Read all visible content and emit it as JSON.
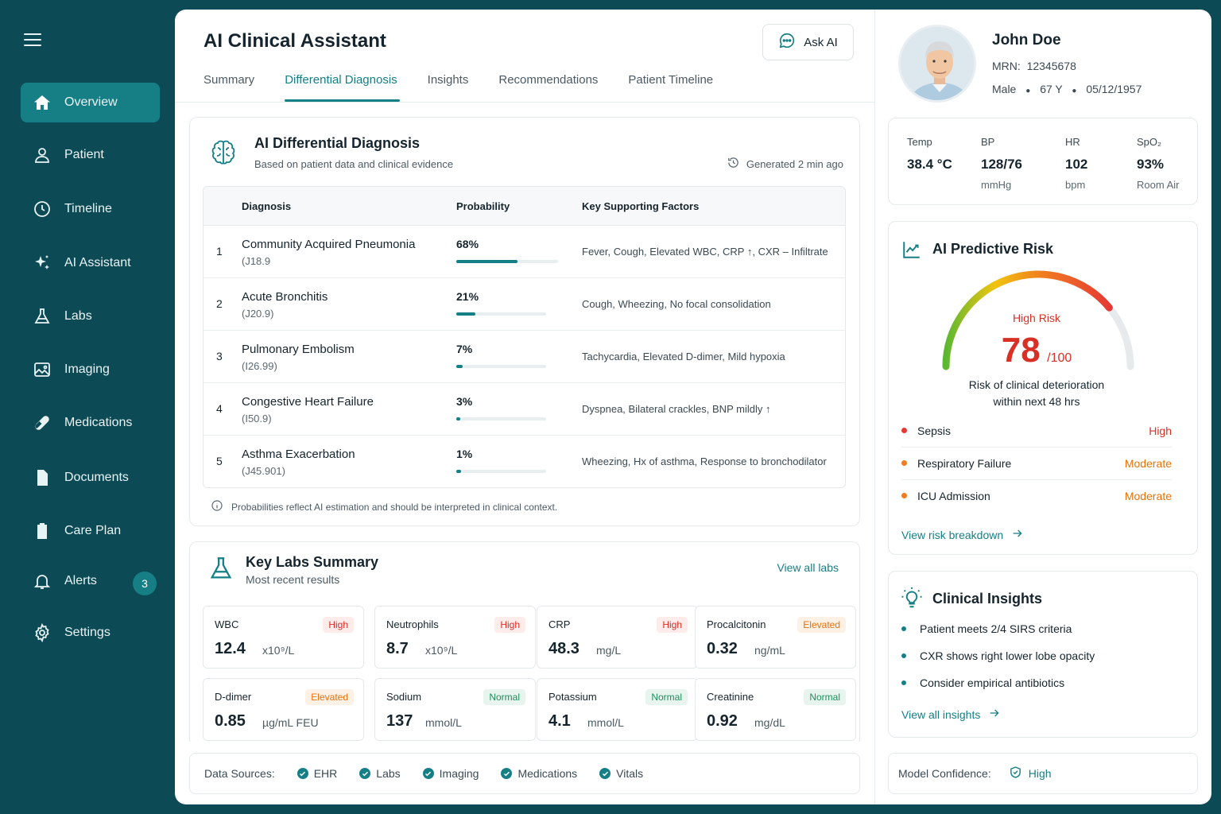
{
  "sidebar": {
    "items": [
      {
        "label": "Overview",
        "icon": "home-icon"
      },
      {
        "label": "Patient",
        "icon": "user-icon"
      },
      {
        "label": "Timeline",
        "icon": "clock-icon"
      },
      {
        "label": "AI Assistant",
        "icon": "sparkle-icon"
      },
      {
        "label": "Labs",
        "icon": "flask-icon"
      },
      {
        "label": "Imaging",
        "icon": "image-icon"
      },
      {
        "label": "Medications",
        "icon": "pill-icon"
      },
      {
        "label": "Documents",
        "icon": "document-icon"
      },
      {
        "label": "Care Plan",
        "icon": "clipboard-icon"
      },
      {
        "label": "Alerts",
        "icon": "bell-icon",
        "badge": "3"
      },
      {
        "label": "Settings",
        "icon": "gear-icon"
      }
    ]
  },
  "header": {
    "title": "AI Clinical Assistant",
    "ask_label": "Ask AI",
    "tabs": [
      "Summary",
      "Differential Diagnosis",
      "Insights",
      "Recommendations",
      "Patient Timeline"
    ],
    "active_tab": "Differential Diagnosis"
  },
  "diagnosis": {
    "title": "AI Differential Diagnosis",
    "subtitle": "Based on patient data and clinical evidence",
    "generated": "Generated 2 min ago",
    "columns": [
      "Diagnosis",
      "Probability",
      "Key Supporting Factors"
    ],
    "rows": [
      {
        "num": "1",
        "name": "Community Acquired Pneumonia",
        "code": "(J18.9",
        "prob": "68%",
        "prob_value": 0.68,
        "factors": "Fever, Cough, Elevated WBC, CRP ↑, CXR – Infiltrate"
      },
      {
        "num": "2",
        "name": "Acute Bronchitis",
        "code": "(J20.9)",
        "prob": "21%",
        "prob_value": 0.21,
        "factors": "Cough, Wheezing, No focal consolidation"
      },
      {
        "num": "3",
        "name": "Pulmonary Embolism",
        "code": "(I26.99)",
        "prob": "7%",
        "prob_value": 0.07,
        "factors": "Tachycardia, Elevated D-dimer, Mild hypoxia"
      },
      {
        "num": "4",
        "name": "Congestive Heart Failure",
        "code": "(I50.9)",
        "prob": "3%",
        "prob_value": 0.03,
        "factors": "Dyspnea, Bilateral crackles, BNP mildly ↑"
      },
      {
        "num": "5",
        "name": "Asthma Exacerbation",
        "code": "(J45.901)",
        "prob": "1%",
        "prob_value": 0.01,
        "factors": "Wheezing, Hx of asthma, Response to bronchodilator"
      }
    ],
    "note": "Probabilities reflect AI estimation and should be interpreted in clinical context."
  },
  "labs": {
    "title": "Key Labs Summary",
    "subtitle": "Most recent results",
    "view_all": "View all labs",
    "items": [
      {
        "name": "WBC",
        "value": "12.4",
        "unit": "x10⁹/L",
        "flag": "High",
        "flag_type": "high"
      },
      {
        "name": "Neutrophils",
        "value": "8.7",
        "unit": "x10⁹/L",
        "flag": "High",
        "flag_type": "high"
      },
      {
        "name": "CRP",
        "value": "48.3",
        "unit": "mg/L",
        "flag": "High",
        "flag_type": "high"
      },
      {
        "name": "Procalcitonin",
        "value": "0.32",
        "unit": "ng/mL",
        "flag": "Elevated",
        "flag_type": "elev"
      },
      {
        "name": "D-dimer",
        "value": "0.85",
        "unit": "µg/mL FEU",
        "flag": "Elevated",
        "flag_type": "elev"
      },
      {
        "name": "Sodium",
        "value": "137",
        "unit": "mmol/L",
        "flag": "Normal",
        "flag_type": "norm"
      },
      {
        "name": "Potassium",
        "value": "4.1",
        "unit": "mmol/L",
        "flag": "Normal",
        "flag_type": "norm"
      },
      {
        "name": "Creatinine",
        "value": "0.92",
        "unit": "mg/dL",
        "flag": "Normal",
        "flag_type": "norm"
      }
    ]
  },
  "sources": {
    "label": "Data Sources:",
    "items": [
      "EHR",
      "Labs",
      "Imaging",
      "Medications",
      "Vitals"
    ]
  },
  "confidence": {
    "label": "Model Confidence:",
    "value": "High"
  },
  "patient": {
    "name": "John Doe",
    "mrn_label": "MRN:",
    "mrn": "12345678",
    "sex": "Male",
    "age": "67 Y",
    "dob": "05/12/1957"
  },
  "vitals": [
    {
      "label": "Temp",
      "value": "38.4 °C",
      "unit": ""
    },
    {
      "label": "BP",
      "value": "128/76",
      "unit": "mmHg"
    },
    {
      "label": "HR",
      "value": "102",
      "unit": "bpm"
    },
    {
      "label": "SpO₂",
      "value": "93%",
      "unit": "Room Air"
    }
  ],
  "risk": {
    "title": "AI Predictive Risk",
    "level": "High Risk",
    "score": "78",
    "score_max": "/100",
    "score_value": 78,
    "desc_line1": "Risk of clinical deterioration",
    "desc_line2": "within next 48 hrs",
    "items": [
      {
        "name": "Sepsis",
        "level": "High",
        "color": "#d93025"
      },
      {
        "name": "Respiratory Failure",
        "level": "Moderate",
        "color": "#e8710a"
      },
      {
        "name": "ICU Admission",
        "level": "Moderate",
        "color": "#e8710a"
      }
    ],
    "link": "View risk breakdown"
  },
  "insights": {
    "title": "Clinical Insights",
    "items": [
      "Patient meets 2/4 SIRS criteria",
      "CXR shows right lower lobe opacity",
      "Consider empirical antibiotics"
    ],
    "link": "View all insights"
  },
  "colors": {
    "accent": "#157f86",
    "sidebar": "#0c4a55",
    "high": "#d93025",
    "moderate": "#e8710a",
    "normal": "#1e8e5a"
  }
}
